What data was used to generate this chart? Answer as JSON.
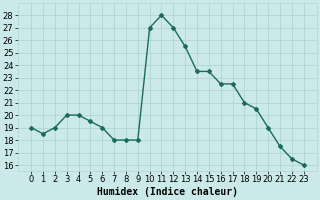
{
  "x": [
    0,
    1,
    2,
    3,
    4,
    5,
    6,
    7,
    8,
    9,
    10,
    11,
    12,
    13,
    14,
    15,
    16,
    17,
    18,
    19,
    20,
    21,
    22,
    23
  ],
  "y": [
    19,
    18.5,
    19,
    20,
    20,
    19.5,
    19,
    18,
    18,
    18,
    27,
    28,
    27,
    25.5,
    23.5,
    23.5,
    22.5,
    22.5,
    21,
    20.5,
    19,
    17.5,
    16.5,
    16
  ],
  "line_color": "#1a6b5e",
  "marker": "D",
  "marker_size": 2,
  "bg_color": "#cce9e9",
  "grid_color": "#b0d4d4",
  "ylim": [
    15.5,
    29
  ],
  "yticks": [
    16,
    17,
    18,
    19,
    20,
    21,
    22,
    23,
    24,
    25,
    26,
    27,
    28
  ],
  "xlabel": "Humidex (Indice chaleur)",
  "xlabel_fontsize": 7,
  "tick_fontsize": 6,
  "line_width": 1.0
}
